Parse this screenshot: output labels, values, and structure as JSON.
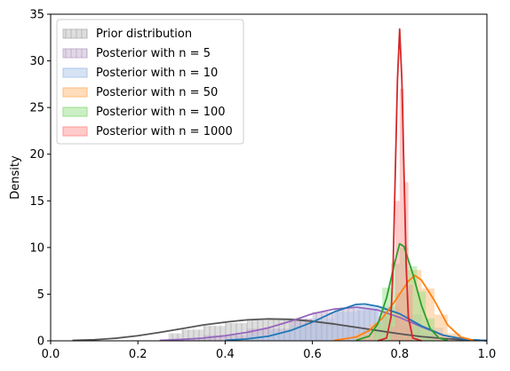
{
  "chart_data": {
    "type": "area",
    "title": "",
    "xlabel": "",
    "ylabel": "Density",
    "xlim": [
      0.0,
      1.0
    ],
    "ylim": [
      0,
      35
    ],
    "xticks": [
      "0.0",
      "0.2",
      "0.4",
      "0.6",
      "0.8",
      "1.0"
    ],
    "yticks": [
      "0",
      "5",
      "10",
      "15",
      "20",
      "25",
      "30",
      "35"
    ],
    "legend_position": "top-left",
    "grid": false,
    "series": [
      {
        "name": "Prior distribution",
        "color": "#555555",
        "fill": "#bdbdbd",
        "hatch": true,
        "hist": [
          [
            0.27,
            0.3,
            0.8
          ],
          [
            0.3,
            0.35,
            1.2
          ],
          [
            0.35,
            0.4,
            1.6
          ],
          [
            0.4,
            0.45,
            1.9
          ],
          [
            0.45,
            0.5,
            2.2
          ],
          [
            0.5,
            0.55,
            2.4
          ],
          [
            0.55,
            0.6,
            2.3
          ],
          [
            0.6,
            0.65,
            2.0
          ],
          [
            0.65,
            0.7,
            1.6
          ],
          [
            0.7,
            0.75,
            1.2
          ],
          [
            0.75,
            0.8,
            0.8
          ],
          [
            0.8,
            0.85,
            0.5
          ],
          [
            0.85,
            0.9,
            0.3
          ]
        ],
        "kde": [
          [
            0.05,
            0.05
          ],
          [
            0.1,
            0.12
          ],
          [
            0.15,
            0.28
          ],
          [
            0.2,
            0.55
          ],
          [
            0.25,
            0.9
          ],
          [
            0.3,
            1.3
          ],
          [
            0.35,
            1.7
          ],
          [
            0.4,
            2.0
          ],
          [
            0.45,
            2.25
          ],
          [
            0.5,
            2.35
          ],
          [
            0.55,
            2.3
          ],
          [
            0.6,
            2.1
          ],
          [
            0.65,
            1.8
          ],
          [
            0.7,
            1.45
          ],
          [
            0.75,
            1.1
          ],
          [
            0.8,
            0.75
          ],
          [
            0.85,
            0.45
          ],
          [
            0.9,
            0.25
          ],
          [
            0.95,
            0.1
          ],
          [
            1.0,
            0.03
          ]
        ]
      },
      {
        "name": "Posterior with n = 5",
        "color": "#9467bd",
        "fill": "#c5b0d5",
        "hatch": true,
        "hist": [
          [
            0.27,
            0.35,
            0.2
          ],
          [
            0.35,
            0.45,
            0.6
          ],
          [
            0.45,
            0.55,
            1.3
          ],
          [
            0.55,
            0.6,
            2.4
          ],
          [
            0.6,
            0.65,
            3.1
          ],
          [
            0.65,
            0.7,
            3.5
          ],
          [
            0.7,
            0.75,
            3.3
          ],
          [
            0.75,
            0.8,
            2.6
          ],
          [
            0.8,
            0.85,
            1.6
          ],
          [
            0.85,
            0.9,
            0.7
          ]
        ],
        "kde": [
          [
            0.25,
            0.05
          ],
          [
            0.3,
            0.15
          ],
          [
            0.35,
            0.3
          ],
          [
            0.4,
            0.55
          ],
          [
            0.45,
            0.9
          ],
          [
            0.5,
            1.4
          ],
          [
            0.55,
            2.1
          ],
          [
            0.6,
            2.9
          ],
          [
            0.65,
            3.4
          ],
          [
            0.7,
            3.6
          ],
          [
            0.75,
            3.3
          ],
          [
            0.8,
            2.5
          ],
          [
            0.85,
            1.5
          ],
          [
            0.9,
            0.6
          ],
          [
            0.95,
            0.15
          ],
          [
            1.0,
            0.02
          ]
        ]
      },
      {
        "name": "Posterior with n = 10",
        "color": "#1f77b4",
        "fill": "#aec7e8",
        "hatch": false,
        "hist": [
          [
            0.45,
            0.5,
            0.6
          ],
          [
            0.5,
            0.55,
            1.0
          ],
          [
            0.55,
            0.6,
            1.6
          ],
          [
            0.6,
            0.65,
            2.4
          ],
          [
            0.65,
            0.7,
            3.1
          ],
          [
            0.7,
            0.75,
            3.8
          ],
          [
            0.75,
            0.8,
            3.7
          ],
          [
            0.8,
            0.85,
            2.8
          ],
          [
            0.85,
            0.9,
            1.4
          ],
          [
            0.9,
            0.95,
            0.4
          ]
        ],
        "kde": [
          [
            0.4,
            0.05
          ],
          [
            0.45,
            0.2
          ],
          [
            0.5,
            0.5
          ],
          [
            0.55,
            1.1
          ],
          [
            0.6,
            2.0
          ],
          [
            0.65,
            3.1
          ],
          [
            0.7,
            3.9
          ],
          [
            0.72,
            3.95
          ],
          [
            0.75,
            3.7
          ],
          [
            0.8,
            2.9
          ],
          [
            0.85,
            1.6
          ],
          [
            0.9,
            0.6
          ],
          [
            0.95,
            0.15
          ],
          [
            1.0,
            0.02
          ]
        ]
      },
      {
        "name": "Posterior with n = 50",
        "color": "#ff7f0e",
        "fill": "#ffbb78",
        "hatch": false,
        "hist": [
          [
            0.7,
            0.73,
            0.8
          ],
          [
            0.73,
            0.76,
            1.8
          ],
          [
            0.76,
            0.79,
            3.0
          ],
          [
            0.79,
            0.82,
            5.2
          ],
          [
            0.82,
            0.85,
            7.6
          ],
          [
            0.85,
            0.88,
            5.6
          ],
          [
            0.88,
            0.91,
            2.8
          ],
          [
            0.91,
            0.94,
            0.8
          ]
        ],
        "kde": [
          [
            0.65,
            0.05
          ],
          [
            0.7,
            0.4
          ],
          [
            0.73,
            1.1
          ],
          [
            0.76,
            2.4
          ],
          [
            0.79,
            4.3
          ],
          [
            0.82,
            6.4
          ],
          [
            0.835,
            7.0
          ],
          [
            0.85,
            6.5
          ],
          [
            0.88,
            4.3
          ],
          [
            0.91,
            1.7
          ],
          [
            0.94,
            0.4
          ],
          [
            0.97,
            0.05
          ]
        ]
      },
      {
        "name": "Posterior with n = 100",
        "color": "#2ca02c",
        "fill": "#98df8a",
        "hatch": false,
        "hist": [
          [
            0.74,
            0.76,
            2.0
          ],
          [
            0.76,
            0.78,
            5.7
          ],
          [
            0.78,
            0.8,
            8.3
          ],
          [
            0.8,
            0.82,
            10.0
          ],
          [
            0.82,
            0.84,
            8.0
          ],
          [
            0.84,
            0.86,
            5.3
          ],
          [
            0.86,
            0.88,
            2.4
          ]
        ],
        "kde": [
          [
            0.7,
            0.05
          ],
          [
            0.73,
            0.5
          ],
          [
            0.75,
            1.8
          ],
          [
            0.77,
            4.6
          ],
          [
            0.79,
            8.6
          ],
          [
            0.8,
            10.4
          ],
          [
            0.81,
            10.1
          ],
          [
            0.83,
            7.2
          ],
          [
            0.85,
            3.8
          ],
          [
            0.87,
            1.3
          ],
          [
            0.89,
            0.3
          ],
          [
            0.91,
            0.05
          ]
        ]
      },
      {
        "name": "Posterior with n = 1000",
        "color": "#d62728",
        "fill": "#ff9896",
        "hatch": false,
        "hist": [
          [
            0.78,
            0.79,
            1.5
          ],
          [
            0.79,
            0.8,
            15.0
          ],
          [
            0.8,
            0.81,
            27.0
          ],
          [
            0.81,
            0.82,
            17.0
          ],
          [
            0.82,
            0.83,
            6.0
          ]
        ],
        "kde": [
          [
            0.75,
            0.0
          ],
          [
            0.77,
            0.3
          ],
          [
            0.78,
            2.5
          ],
          [
            0.785,
            8.0
          ],
          [
            0.79,
            18.0
          ],
          [
            0.795,
            28.0
          ],
          [
            0.8,
            33.4
          ],
          [
            0.805,
            28.0
          ],
          [
            0.81,
            18.0
          ],
          [
            0.815,
            8.0
          ],
          [
            0.82,
            2.5
          ],
          [
            0.83,
            0.3
          ],
          [
            0.85,
            0.0
          ]
        ]
      }
    ]
  }
}
